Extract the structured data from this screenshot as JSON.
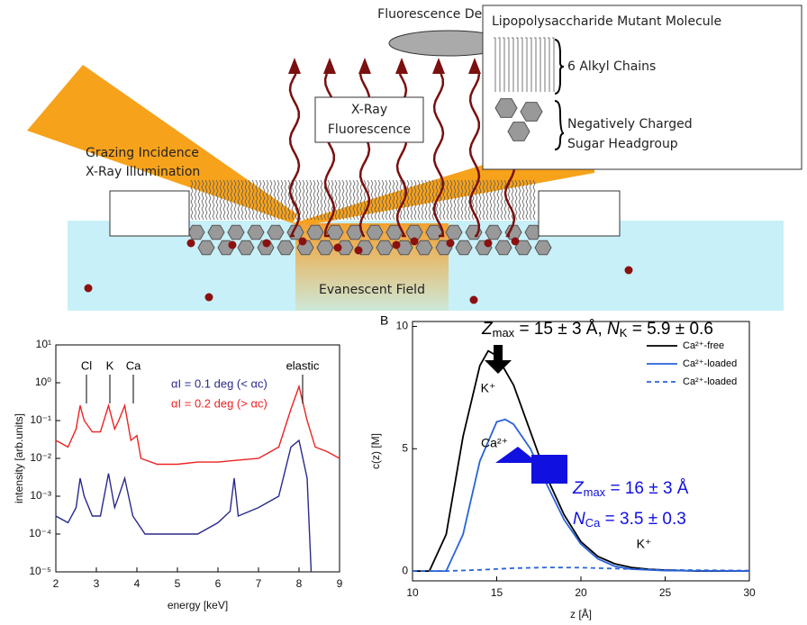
{
  "diagram": {
    "detector": "Fluorescence Detector",
    "legend_title": "Lipopolysaccharide Mutant Molecule",
    "chains": "6 Alkyl Chains",
    "headgroup_1": "Negatively Charged",
    "headgroup_2": "Sugar Headgroup",
    "fluor_1": "X-Ray",
    "fluor_2": "Fluorescence",
    "beam_1": "Grazing Incidence",
    "beam_2": "X-Ray Illumination",
    "field": "Evanescent Field"
  },
  "chart_data": [
    {
      "type": "line",
      "log_y": true,
      "xlabel": "energy [keV]",
      "ylabel": "intensity [arb.units]",
      "xlim": [
        2,
        9
      ],
      "xticks": [
        2,
        3,
        4,
        5,
        6,
        7,
        8,
        9
      ],
      "ylim": [
        1e-05,
        10
      ],
      "yticks": [
        {
          "value": 1e-05,
          "label": "10⁻⁵"
        },
        {
          "value": 0.0001,
          "label": "10⁻⁴"
        },
        {
          "value": 0.001,
          "label": "10⁻³"
        },
        {
          "value": 0.01,
          "label": "10⁻²"
        },
        {
          "value": 0.1,
          "label": "10⁻¹"
        },
        {
          "value": 1,
          "label": "10⁰"
        },
        {
          "value": 10,
          "label": "10¹"
        }
      ],
      "annotations": [
        "Cl",
        "K",
        "Ca",
        "elastic"
      ],
      "series": [
        {
          "name": "αI = 0.1 deg (< αc)",
          "color": "#2a2a8c",
          "x": [
            2.0,
            2.3,
            2.5,
            2.6,
            2.7,
            2.9,
            3.1,
            3.3,
            3.45,
            3.55,
            3.7,
            3.9,
            4.2,
            5.0,
            5.5,
            6.0,
            6.3,
            6.4,
            6.5,
            7.0,
            7.5,
            7.8,
            8.0,
            8.2,
            8.3
          ],
          "values": [
            0.0003,
            0.0002,
            0.0005,
            0.003,
            0.001,
            0.0003,
            0.0003,
            0.004,
            0.0005,
            0.001,
            0.003,
            0.0003,
            0.0001,
            0.0001,
            0.0001,
            0.0002,
            0.0004,
            0.003,
            0.0003,
            0.0005,
            0.001,
            0.02,
            0.03,
            0.003,
            1e-05
          ]
        },
        {
          "name": "αI = 0.2 deg (> αc)",
          "color": "#ee2222",
          "x": [
            2.0,
            2.3,
            2.5,
            2.6,
            2.7,
            2.9,
            3.1,
            3.3,
            3.45,
            3.55,
            3.7,
            3.85,
            4.0,
            4.1,
            4.5,
            5.0,
            5.5,
            6.0,
            6.5,
            7.0,
            7.5,
            7.8,
            8.0,
            8.2,
            8.4,
            8.7,
            9.0
          ],
          "values": [
            0.03,
            0.02,
            0.06,
            0.25,
            0.1,
            0.05,
            0.05,
            0.25,
            0.06,
            0.1,
            0.25,
            0.03,
            0.04,
            0.01,
            0.007,
            0.007,
            0.008,
            0.008,
            0.009,
            0.01,
            0.02,
            0.2,
            0.8,
            0.1,
            0.02,
            0.015,
            0.01
          ]
        }
      ]
    },
    {
      "type": "line",
      "panel": "B",
      "xlabel": "z [Å]",
      "ylabel": "c(z) [M]",
      "xlim": [
        10,
        30
      ],
      "xticks": [
        10,
        15,
        20,
        25,
        30
      ],
      "ylim": [
        -0.4,
        10.2
      ],
      "yticks": [
        0,
        5,
        10
      ],
      "annotations": [
        "K⁺",
        "Ca²⁺",
        "K⁺"
      ],
      "zmax_k": [
        "Z",
        "max",
        " = 15 ± 3 Å, ",
        "N",
        "K",
        " = 5.9 ± 0.6"
      ],
      "zmax_ca": [
        "Z",
        "max",
        " = 16 ± 3 Å"
      ],
      "n_ca": [
        "N",
        "Ca",
        " = 3.5 ± 0.3"
      ],
      "series": [
        {
          "name": "Ca²⁺-free",
          "color": "#000000",
          "dash": false,
          "x": [
            10,
            11,
            12,
            13,
            14,
            14.5,
            15,
            16,
            17,
            18,
            19,
            20,
            21,
            22,
            23,
            24,
            25,
            26,
            27,
            30
          ],
          "values": [
            0,
            0,
            1.5,
            5.5,
            8.4,
            9.0,
            8.8,
            7.6,
            5.7,
            3.8,
            2.3,
            1.2,
            0.6,
            0.3,
            0.15,
            0.08,
            0.04,
            0.02,
            0,
            0
          ]
        },
        {
          "name": "Ca²⁺-loaded",
          "color": "#2a62d8",
          "dash": false,
          "x": [
            11,
            12,
            13,
            14,
            15,
            15.5,
            16,
            17,
            18,
            19,
            20,
            21,
            22,
            23,
            25,
            30
          ],
          "values": [
            0,
            0,
            1.5,
            4.5,
            6.1,
            6.2,
            6.0,
            5.0,
            3.5,
            2.1,
            1.1,
            0.5,
            0.2,
            0.08,
            0.02,
            0
          ]
        },
        {
          "name": "Ca²⁺-loaded",
          "color": "#2a62d8",
          "dash": true,
          "x": [
            10,
            12,
            14,
            16,
            18,
            20,
            22,
            25,
            30
          ],
          "values": [
            0,
            0,
            0.05,
            0.12,
            0.15,
            0.14,
            0.1,
            0.05,
            0.02
          ]
        }
      ]
    }
  ]
}
